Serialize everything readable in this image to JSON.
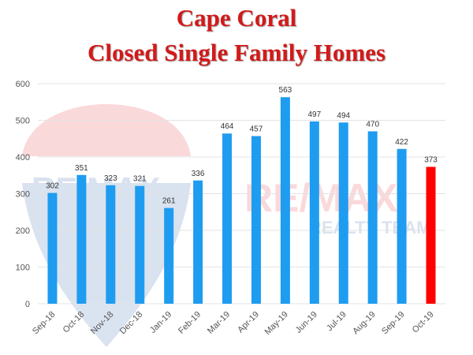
{
  "title_lines": [
    "Cape Coral",
    "Closed Single Family Homes"
  ],
  "watermark": {
    "logo_text": "RE/MAX",
    "tagline": "REALTY TEAM"
  },
  "colors": {
    "bar": "#1e9cf0",
    "highlight": "#ff0000",
    "grid": "#e3e3e3",
    "title": "#d21a1a"
  },
  "chart_data": {
    "type": "bar",
    "title": "Cape Coral Closed Single Family Homes",
    "categories": [
      "Sep-18",
      "Oct-18",
      "Nov-18",
      "Dec-18",
      "Jan-19",
      "Feb-19",
      "Mar-19",
      "Apr-19",
      "May-19",
      "Jun-19",
      "Jul-19",
      "Aug-19",
      "Sep-19",
      "Oct-19"
    ],
    "values": [
      302,
      351,
      323,
      321,
      261,
      336,
      464,
      457,
      563,
      497,
      494,
      470,
      422,
      373
    ],
    "highlight_index": 13,
    "ylim": [
      0,
      600
    ],
    "yticks": [
      0,
      100,
      200,
      300,
      400,
      500,
      600
    ],
    "grid": true,
    "legend": "none",
    "xlabel": "",
    "ylabel": ""
  }
}
